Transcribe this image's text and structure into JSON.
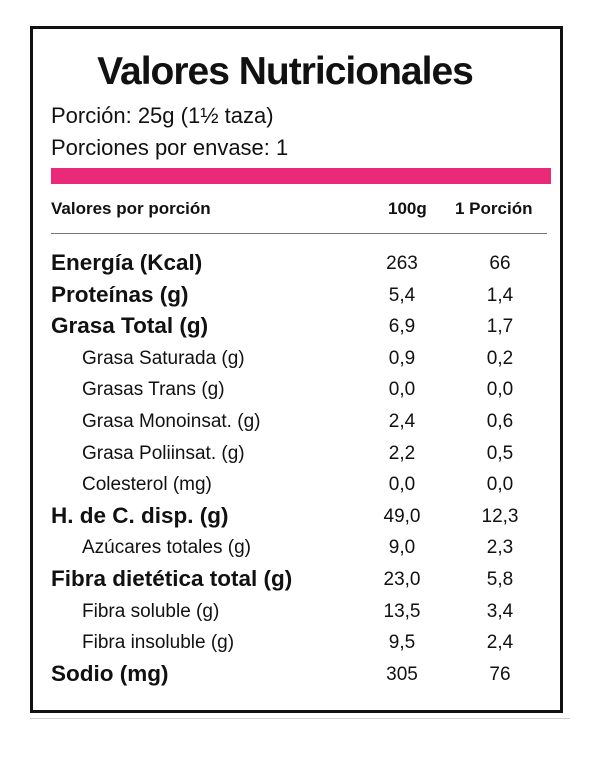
{
  "label": {
    "title": "Valores Nutricionales",
    "serving_size": "Porción: 25g (1½ taza)",
    "servings_per_container": "Porciones por envase: 1",
    "accent_color": "#ea2a78",
    "header": {
      "label": "Valores por porción",
      "col1": "100g",
      "col2": "1 Porción"
    },
    "rows": [
      {
        "name": "Energía (Kcal)",
        "v100": "263",
        "vport": "66",
        "style": "main"
      },
      {
        "name": "Proteínas (g)",
        "v100": "5,4",
        "vport": "1,4",
        "style": "main"
      },
      {
        "name": "Grasa Total (g)",
        "v100": "6,9",
        "vport": "1,7",
        "style": "main"
      },
      {
        "name": "Grasa Saturada (g)",
        "v100": "0,9",
        "vport": "0,2",
        "style": "sub"
      },
      {
        "name": "Grasas Trans (g)",
        "v100": "0,0",
        "vport": "0,0",
        "style": "sub"
      },
      {
        "name": "Grasa Monoinsat. (g)",
        "v100": "2,4",
        "vport": "0,6",
        "style": "sub"
      },
      {
        "name": "Grasa Poliinsat. (g)",
        "v100": "2,2",
        "vport": "0,5",
        "style": "sub"
      },
      {
        "name": "Colesterol (mg)",
        "v100": "0,0",
        "vport": "0,0",
        "style": "sub"
      },
      {
        "name": "H. de C. disp. (g)",
        "v100": "49,0",
        "vport": "12,3",
        "style": "main"
      },
      {
        "name": "Azúcares totales (g)",
        "v100": "9,0",
        "vport": "2,3",
        "style": "sub"
      },
      {
        "name": "Fibra dietética total (g)",
        "v100": "23,0",
        "vport": "5,8",
        "style": "main"
      },
      {
        "name": "Fibra soluble (g)",
        "v100": "13,5",
        "vport": "3,4",
        "style": "sub"
      },
      {
        "name": "Fibra insoluble (g)",
        "v100": "9,5",
        "vport": "2,4",
        "style": "sub"
      },
      {
        "name": "Sodio (mg)",
        "v100": "305",
        "vport": "76",
        "style": "main"
      }
    ]
  }
}
